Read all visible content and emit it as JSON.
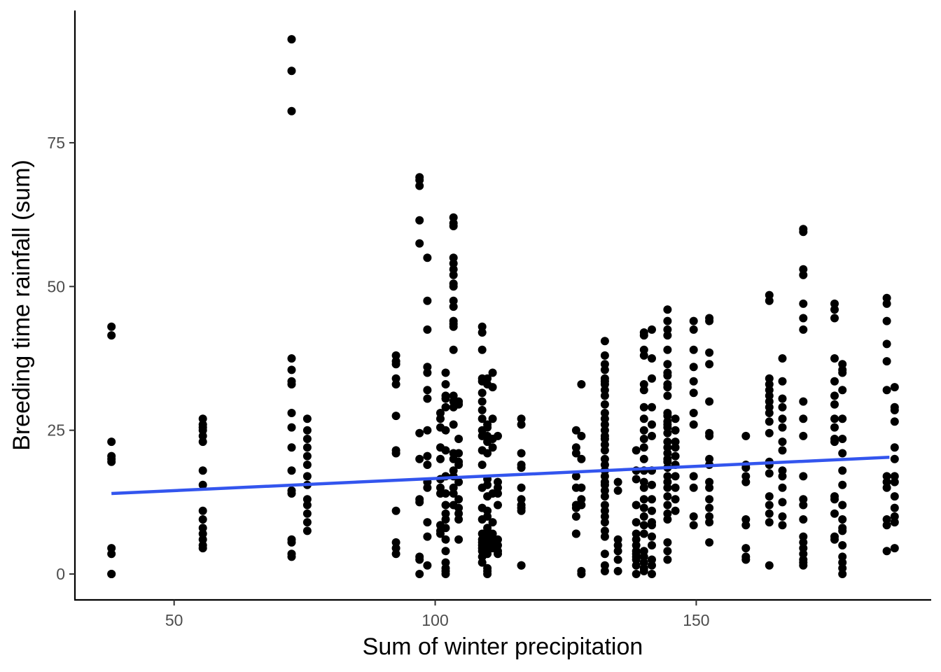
{
  "chart_data": {
    "type": "scatter",
    "title": "",
    "xlabel": "Sum of winter precipitation",
    "ylabel": "Breeding time rainfall (sum)",
    "xlim": [
      31,
      195
    ],
    "ylim": [
      -4.5,
      98
    ],
    "xticks": [
      50,
      100,
      150
    ],
    "yticks": [
      0,
      25,
      50,
      75
    ],
    "grid": false,
    "point_color": "#000000",
    "trend_color": "#3355ee",
    "trend_line": {
      "x": [
        38,
        187
      ],
      "y": [
        14.0,
        20.3
      ]
    },
    "columns": [
      {
        "x": 38,
        "y": [
          43,
          41.5,
          23,
          20.5,
          20,
          19.5,
          4.5,
          3.5,
          0,
          0
        ]
      },
      {
        "x": 55.5,
        "y": [
          27,
          26,
          25.5,
          25,
          24,
          23,
          18,
          15.5,
          11,
          9.5,
          8,
          7,
          6,
          5,
          4.5
        ]
      },
      {
        "x": 72.5,
        "y": [
          93,
          87.5,
          80.5,
          37.5,
          35.5,
          33.5,
          33,
          28,
          25.5,
          22,
          18,
          14.5,
          14,
          6,
          5.5,
          3.5,
          3
        ]
      },
      {
        "x": 75.5,
        "y": [
          27,
          25,
          23.5,
          22,
          20.5,
          19,
          17,
          15.5,
          13,
          12,
          10.5,
          9,
          7.5
        ]
      },
      {
        "x": 92.5,
        "y": [
          38,
          37,
          36.5,
          34,
          33,
          27.5,
          21.5,
          21,
          11,
          5.5,
          4.5,
          3.5
        ]
      },
      {
        "x": 97,
        "y": [
          69,
          68.5,
          67.5,
          61.5,
          57.5,
          24.5,
          20,
          13,
          12.5,
          3,
          2.5,
          0
        ]
      },
      {
        "x": 98.5,
        "y": [
          55,
          47.5,
          42.5,
          36,
          35,
          32,
          30.5,
          25,
          20.5,
          19,
          16,
          15,
          9,
          6.5,
          1.5
        ]
      },
      {
        "x": 101,
        "y": [
          28,
          27,
          25.5,
          22,
          20,
          16.5,
          15,
          14,
          8.5,
          7.5,
          7
        ]
      },
      {
        "x": 102,
        "y": [
          35,
          33,
          31,
          30.5,
          29,
          25,
          21.5,
          17,
          14,
          12,
          10.5,
          9.5,
          8,
          6,
          4,
          2,
          1,
          0.5,
          0
        ]
      },
      {
        "x": 103.5,
        "y": [
          62,
          61,
          60.5,
          55,
          54,
          53,
          52,
          50.5,
          50,
          47.5,
          46.5,
          44,
          43.5,
          43,
          39,
          31,
          30,
          29,
          26,
          21,
          20,
          18,
          17,
          15,
          14,
          12
        ]
      },
      {
        "x": 104.5,
        "y": [
          30,
          29.5,
          23.5,
          21,
          19.5,
          19,
          16,
          13,
          11.5,
          10.5,
          9.5,
          6
        ]
      },
      {
        "x": 109,
        "y": [
          43,
          42,
          39,
          34,
          33.5,
          31.5,
          30,
          28.5,
          27,
          25,
          24,
          21.5,
          19,
          15,
          11.5,
          9.5,
          7,
          6,
          5.5,
          5,
          4.5,
          4,
          3,
          2
        ]
      },
      {
        "x": 110,
        "y": [
          34,
          33,
          26,
          25.5,
          24,
          23,
          21,
          16.5,
          15.5,
          13.5,
          11,
          10,
          8,
          7.5,
          6.5,
          5.5,
          5,
          4,
          3.5,
          1,
          0.5,
          0
        ]
      },
      {
        "x": 111,
        "y": [
          35,
          32.5,
          27,
          23.5,
          22,
          14,
          9,
          7,
          6,
          5.5,
          4.5
        ]
      },
      {
        "x": 112,
        "y": [
          24,
          16,
          15,
          14,
          12,
          6,
          5,
          4,
          3.5
        ]
      },
      {
        "x": 116.5,
        "y": [
          27,
          26,
          21,
          19,
          18.5,
          15,
          13,
          12,
          11.5,
          11,
          1.5,
          1.5
        ]
      },
      {
        "x": 127,
        "y": [
          25,
          22,
          21,
          17,
          15,
          12,
          11.5,
          10,
          7,
          7
        ]
      },
      {
        "x": 128,
        "y": [
          33,
          24,
          20,
          15,
          13,
          12,
          0.5,
          0
        ]
      },
      {
        "x": 132.5,
        "y": [
          40.5,
          38,
          36.5,
          35.5,
          34,
          33.5,
          33,
          32,
          31,
          29.5,
          28,
          27,
          26,
          25,
          24,
          23.5,
          22.5,
          21.5,
          20,
          19,
          18,
          17,
          16,
          15.5,
          14.5,
          13.5,
          12,
          11,
          10,
          9,
          7.5,
          6.5,
          3.5,
          1.5,
          0.5
        ]
      },
      {
        "x": 135,
        "y": [
          16,
          14.5,
          6,
          5,
          4,
          2.5,
          0.5
        ]
      },
      {
        "x": 138.5,
        "y": [
          21.5,
          18,
          16.5,
          12,
          9,
          7,
          6,
          5,
          4,
          3.5,
          3,
          2.5,
          1.5,
          0
        ]
      },
      {
        "x": 140,
        "y": [
          42,
          41.5,
          39,
          38,
          33,
          32,
          29,
          27,
          25,
          23.5,
          22,
          20,
          18,
          16,
          15,
          13,
          11.5,
          10,
          8.5,
          7,
          4,
          3,
          2,
          1,
          0.5
        ]
      },
      {
        "x": 141.5,
        "y": [
          42.5,
          37.5,
          34,
          29,
          26,
          24,
          18,
          15.5,
          13,
          11,
          9,
          8.5,
          6.5,
          5,
          2.5,
          1.5,
          0
        ]
      },
      {
        "x": 144.5,
        "y": [
          46,
          44,
          42.5,
          41.5,
          39,
          36.5,
          35,
          34.5,
          33,
          32.5,
          31,
          28,
          27.5,
          26.5,
          26,
          25.5,
          24.5,
          23,
          22,
          21,
          20,
          19.5,
          18.5,
          17,
          16,
          15,
          13.5,
          12,
          10.5,
          9.5,
          5.5,
          4,
          2.5
        ]
      },
      {
        "x": 146,
        "y": [
          27,
          25,
          23,
          22,
          20.5,
          19,
          17,
          15,
          13,
          11
        ]
      },
      {
        "x": 149.5,
        "y": [
          44,
          42.5,
          39,
          36,
          33.5,
          31.5,
          28,
          26,
          17,
          15,
          10,
          8.5
        ]
      },
      {
        "x": 152.5,
        "y": [
          44.5,
          44,
          38.5,
          36.5,
          30,
          24.5,
          24,
          20,
          19,
          16,
          15,
          13,
          11.5,
          10,
          9,
          5.5
        ]
      },
      {
        "x": 159.5,
        "y": [
          24,
          19,
          18.5,
          17,
          16,
          9.5,
          8.5,
          4.5,
          3,
          2.5
        ]
      },
      {
        "x": 164,
        "y": [
          48.5,
          47.5,
          34,
          33,
          32,
          31,
          30,
          29,
          28,
          26.5,
          24.5,
          19.5,
          19,
          17.5,
          13.5,
          12,
          10.5,
          9,
          1.5
        ]
      },
      {
        "x": 166.5,
        "y": [
          37.5,
          33.5,
          30.5,
          29,
          27,
          25.5,
          23,
          21.5,
          18,
          17,
          15,
          12.5,
          10,
          8.5
        ]
      },
      {
        "x": 170.5,
        "y": [
          60,
          59.5,
          53,
          52,
          47,
          44.5,
          42.5,
          30,
          27,
          24,
          17,
          13,
          12,
          9.5,
          6.5,
          5.5,
          4.5,
          3.5,
          2.5,
          2,
          1.5
        ]
      },
      {
        "x": 176.5,
        "y": [
          47,
          46,
          44.5,
          37.5,
          33.5,
          31,
          29.5,
          27,
          25.5,
          23.5,
          23,
          13.5,
          13,
          10.5,
          6.5,
          6
        ]
      },
      {
        "x": 178,
        "y": [
          36.5,
          35.5,
          35,
          32,
          27,
          23.5,
          21,
          18,
          15.5,
          12,
          9.5,
          8,
          7.5,
          5,
          3,
          2,
          1,
          0
        ]
      },
      {
        "x": 186.5,
        "y": [
          48,
          47,
          44,
          40,
          37,
          32,
          17,
          16,
          15,
          9.5,
          8.5,
          4
        ]
      },
      {
        "x": 188,
        "y": [
          32.5,
          29,
          28.5,
          26.5,
          22,
          20,
          17,
          16,
          13.5,
          11.5,
          10,
          9,
          4.5
        ]
      }
    ]
  }
}
